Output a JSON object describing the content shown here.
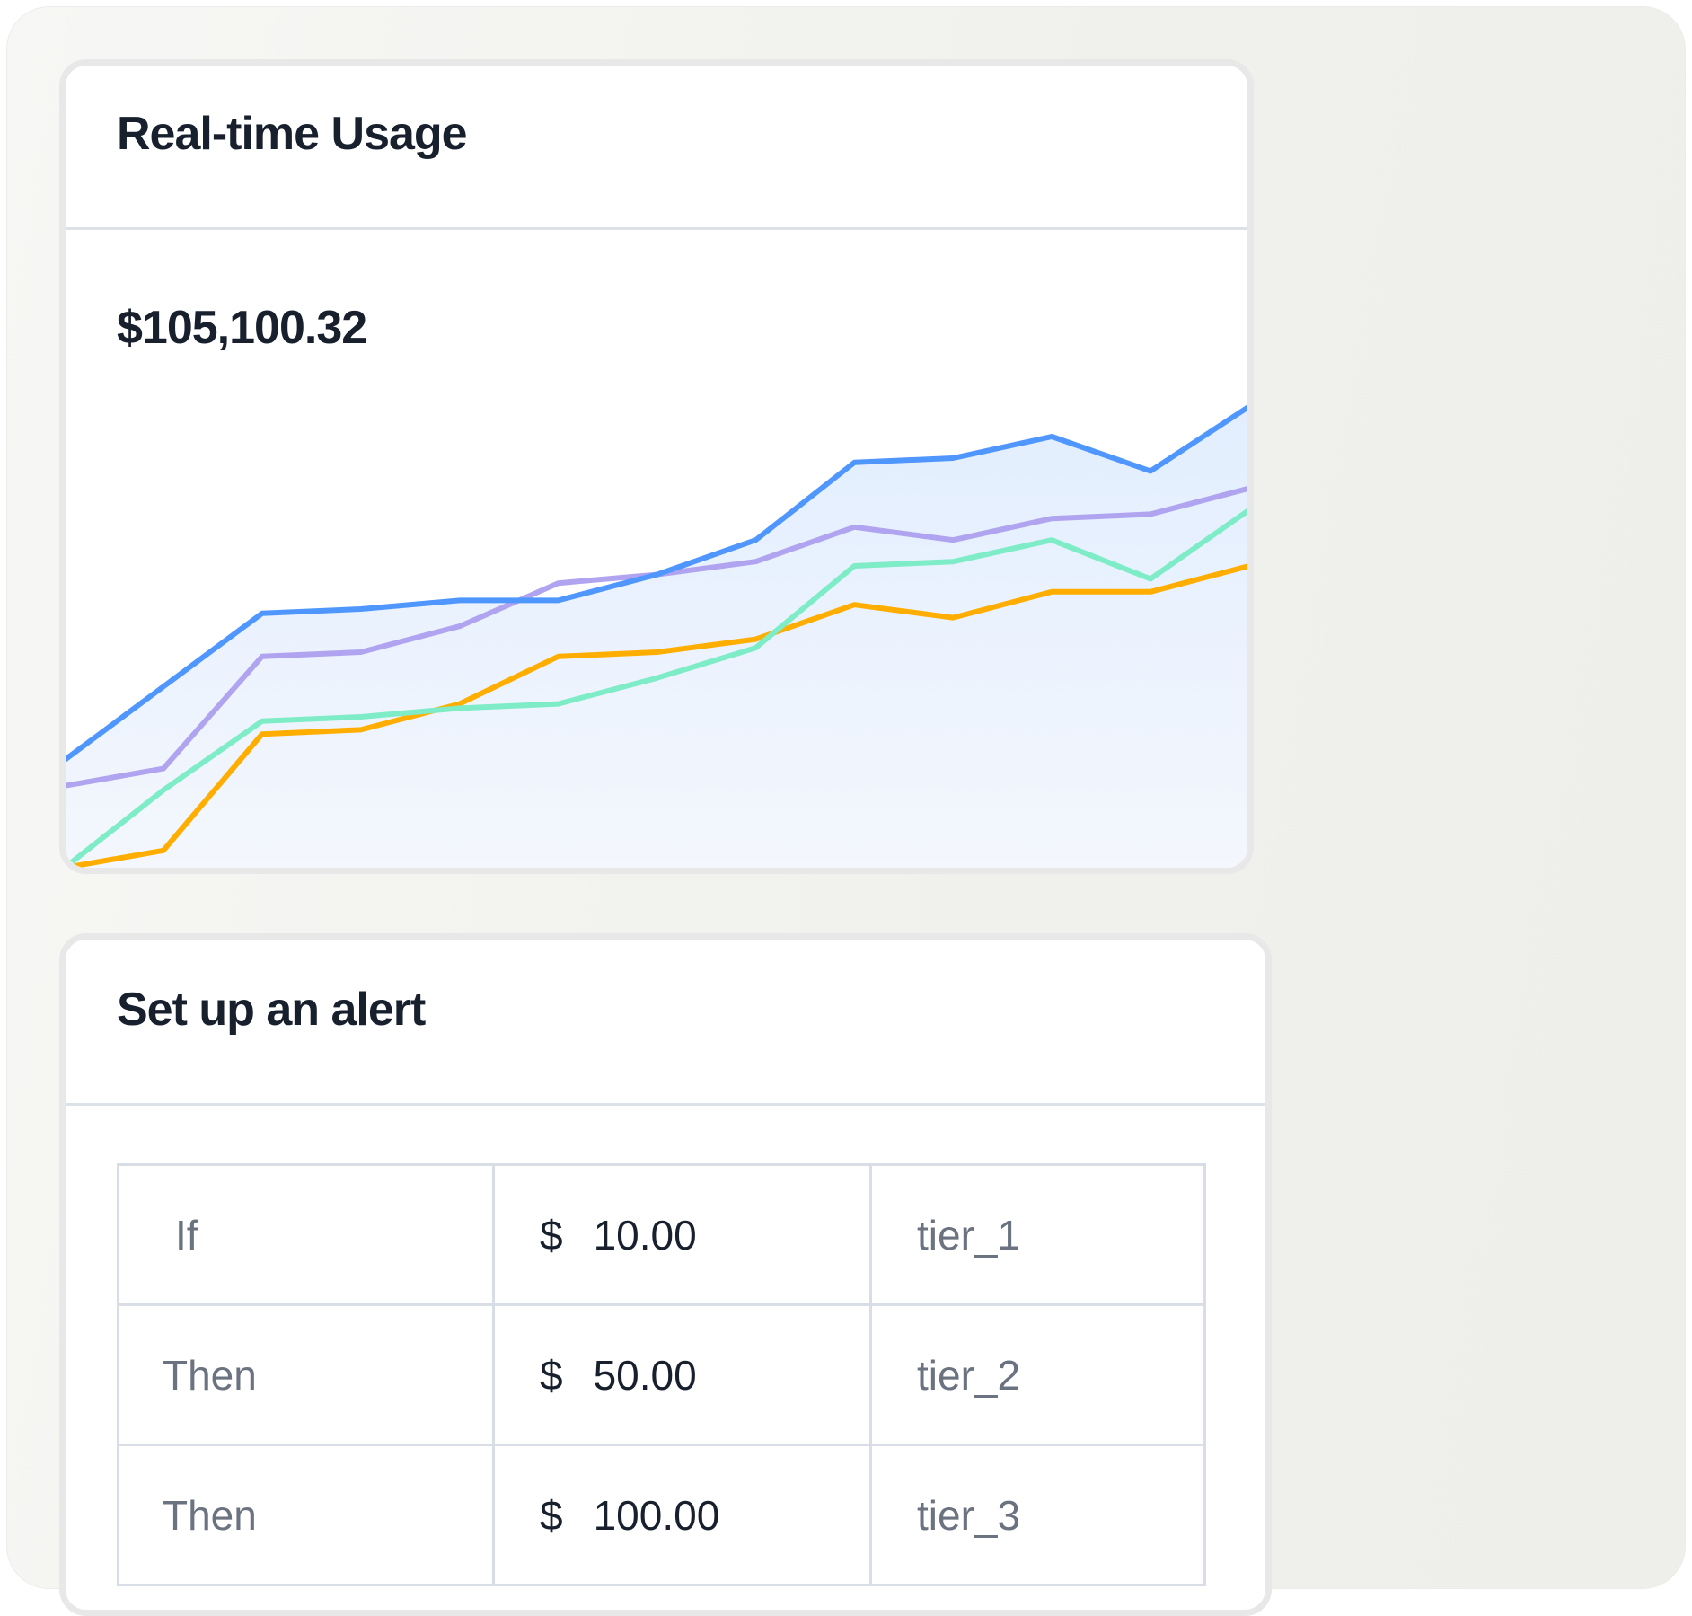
{
  "usage_card": {
    "title": "Real-time Usage",
    "amount": "$105,100.32"
  },
  "chart_data": {
    "type": "line",
    "title": "",
    "xlabel": "",
    "ylabel": "",
    "x": [
      1,
      2,
      3,
      4,
      5,
      6,
      7,
      8,
      9,
      10,
      11,
      12,
      13
    ],
    "ylim": [
      0,
      110
    ],
    "grid": false,
    "legend": "none",
    "area_fill_under_first_series": true,
    "series": [
      {
        "color": "#4f97ff",
        "values": [
          25,
          42,
          59,
          60,
          62,
          62,
          68,
          76,
          94,
          95,
          100,
          92,
          107
        ]
      },
      {
        "color": "#b0a4f0",
        "values": [
          19,
          23,
          49,
          50,
          56,
          66,
          68,
          71,
          79,
          76,
          81,
          82,
          88
        ]
      },
      {
        "color": "#7eecc6",
        "values": [
          0,
          18,
          34,
          35,
          37,
          38,
          44,
          51,
          70,
          71,
          76,
          67,
          83
        ]
      },
      {
        "color": "#ffae00",
        "values": [
          0,
          4,
          31,
          32,
          38,
          49,
          50,
          53,
          61,
          58,
          64,
          64,
          70
        ]
      }
    ]
  },
  "alert_card": {
    "title": "Set up an alert",
    "rows": [
      {
        "label": "If",
        "currency": "$",
        "amount": "10.00",
        "tier": "tier_1"
      },
      {
        "label": "Then",
        "currency": "$",
        "amount": "50.00",
        "tier": "tier_2"
      },
      {
        "label": "Then",
        "currency": "$",
        "amount": "100.00",
        "tier": "tier_3"
      }
    ]
  }
}
